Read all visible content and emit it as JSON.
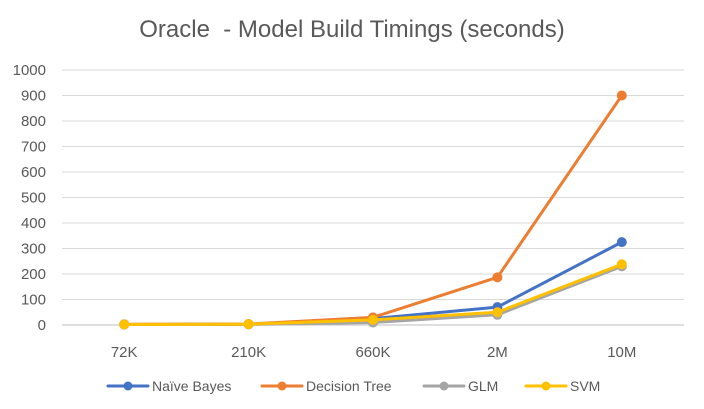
{
  "chart_data": {
    "type": "line",
    "title": "Oracle  - Model Build Timings (seconds)",
    "xlabel": "",
    "ylabel": "",
    "categories": [
      "72K",
      "210K",
      "660K",
      "2M",
      "10M"
    ],
    "ylim": [
      0,
      1000
    ],
    "yticks": [
      0,
      100,
      200,
      300,
      400,
      500,
      600,
      700,
      800,
      900,
      1000
    ],
    "grid": true,
    "legend_position": "bottom",
    "series": [
      {
        "name": "Naïve Bayes",
        "color": "#4472C4",
        "values": [
          2,
          3,
          25,
          70,
          325
        ]
      },
      {
        "name": "Decision Tree",
        "color": "#ED7D31",
        "values": [
          3,
          4,
          30,
          187,
          900
        ]
      },
      {
        "name": "GLM",
        "color": "#A5A5A5",
        "values": [
          2,
          2,
          10,
          40,
          230
        ]
      },
      {
        "name": "SVM",
        "color": "#FFC000",
        "values": [
          2,
          3,
          20,
          50,
          238
        ]
      }
    ]
  }
}
